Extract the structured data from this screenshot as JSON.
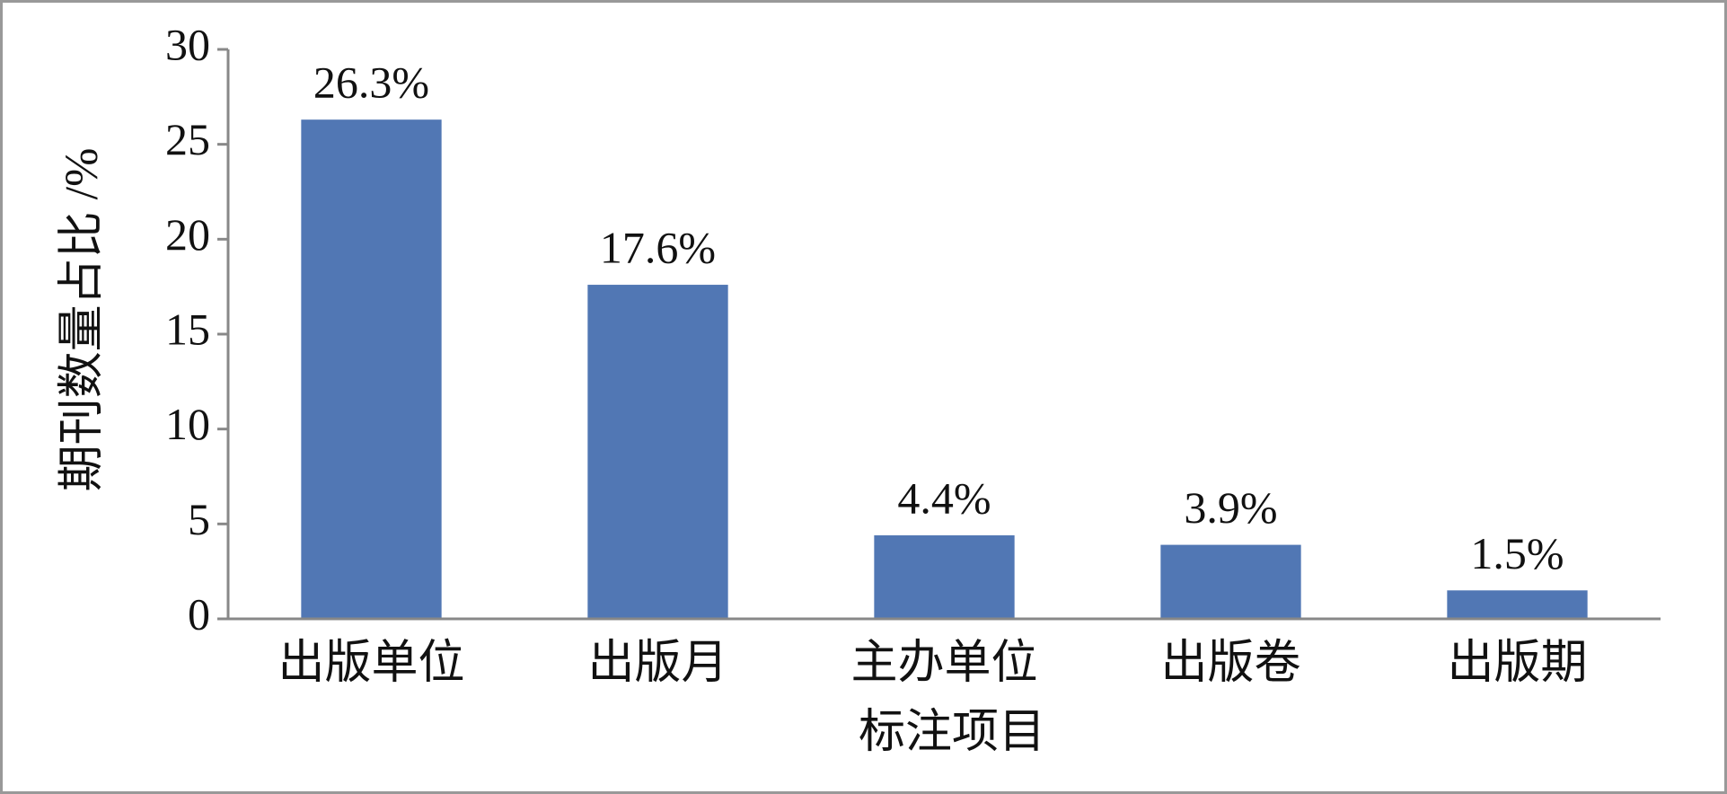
{
  "chart_data": {
    "type": "bar",
    "xlabel": "标注项目",
    "ylabel": "期刊数量占比 /%",
    "categories": [
      "出版单位",
      "出版月",
      "主办单位",
      "出版卷",
      "出版期"
    ],
    "values": [
      26.3,
      17.6,
      4.4,
      3.9,
      1.5
    ],
    "value_labels": [
      "26.3%",
      "17.6%",
      "4.4%",
      "3.9%",
      "1.5%"
    ],
    "color": "#5177b4",
    "ylim": [
      0,
      30
    ],
    "yticks": [
      0,
      5,
      10,
      15,
      20,
      25,
      30
    ],
    "grid": false
  }
}
